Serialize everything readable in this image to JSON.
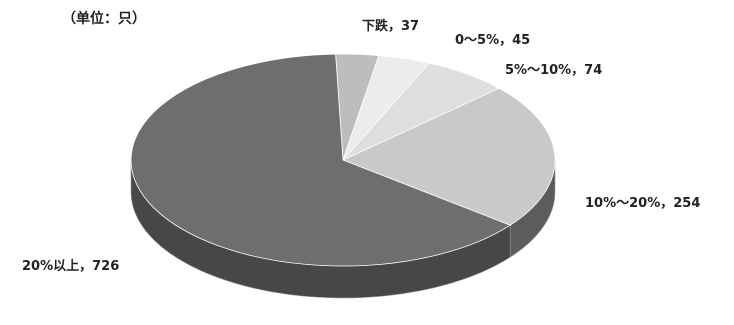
{
  "unit_note": "（单位：只）",
  "chart_data": {
    "type": "pie",
    "style": "3d",
    "unit_note": "（单位：只）",
    "legend": "none",
    "slices": [
      {
        "category": "下跌",
        "value": 37,
        "label": "下跌，37",
        "color": "#bdbdbd"
      },
      {
        "category": "0～5%",
        "value": 45,
        "label": "0～5%，45",
        "color": "#ececec"
      },
      {
        "category": "5%～10%",
        "value": 74,
        "label": "5%～10%，74",
        "color": "#dedede"
      },
      {
        "category": "10%～20%",
        "value": 254,
        "label": "10%～20%，254",
        "color": "#c9c9c9"
      },
      {
        "category": "20%以上",
        "value": 726,
        "label": "20%以上，726",
        "color": "#6e6e6e"
      }
    ]
  }
}
